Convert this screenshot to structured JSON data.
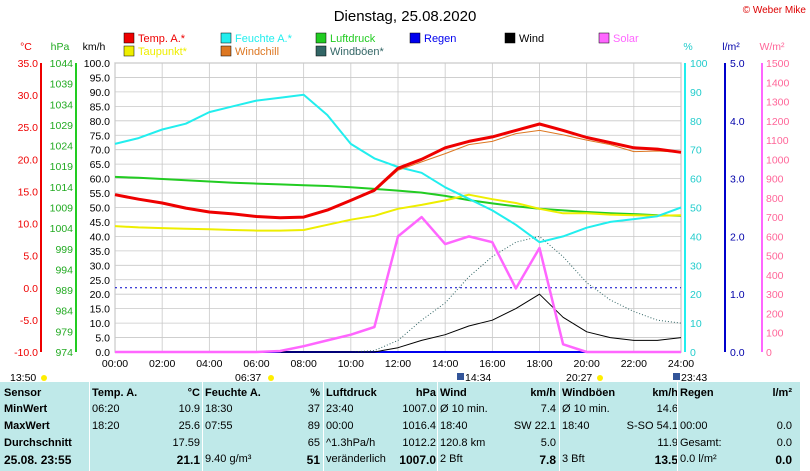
{
  "title": "Dienstag, 25.08.2020",
  "copyright": "© Weber Mike",
  "colors": {
    "temp": "#ee0000",
    "humidity": "#22eeee",
    "pressure": "#22cc22",
    "rain": "#0000ee",
    "wind": "#000000",
    "solar": "#ff66ff",
    "dewpoint": "#eeee00",
    "windchill": "#dd7722",
    "gusts": "#336666",
    "axis_blue": "#0000aa",
    "axis_pink": "#ff6699",
    "panel_bg": "#bfe9e9"
  },
  "legend": [
    {
      "label": "Temp. A.*",
      "color": "#ee0000"
    },
    {
      "label": "Feuchte A.*",
      "color": "#22eeee"
    },
    {
      "label": "Luftdruck",
      "color": "#22cc22"
    },
    {
      "label": "Regen",
      "color": "#0000ee"
    },
    {
      "label": "Wind",
      "color": "#000000"
    },
    {
      "label": "Solar",
      "color": "#ff66ff"
    },
    {
      "label": "Taupunkt*",
      "color": "#eeee00"
    },
    {
      "label": "Windchill",
      "color": "#dd7722"
    },
    {
      "label": "Windböen*",
      "color": "#336666"
    }
  ],
  "axis_units": {
    "temp": "°C",
    "pressure": "hPa",
    "wind": "km/h",
    "humidity": "%",
    "rain": "l/m²",
    "solar": "W/m²"
  },
  "chart_data": {
    "type": "line",
    "title": "Dienstag, 25.08.2020",
    "x_ticks": [
      "00:00",
      "02:00",
      "04:00",
      "06:00",
      "08:00",
      "10:00",
      "12:00",
      "14:00",
      "16:00",
      "18:00",
      "20:00",
      "22:00",
      "24:00"
    ],
    "x_hours": [
      0,
      1,
      2,
      3,
      4,
      5,
      6,
      7,
      8,
      9,
      10,
      11,
      12,
      13,
      14,
      15,
      16,
      17,
      18,
      19,
      20,
      21,
      22,
      23,
      24
    ],
    "axes": {
      "temp_c": {
        "min": -10.0,
        "max": 35.0,
        "ticks": [
          "35.0",
          "30.0",
          "25.0",
          "20.0",
          "15.0",
          "10.0",
          "5.0",
          "0.0",
          "-5.0",
          "-10.0"
        ]
      },
      "pressure_hpa": {
        "min": 974,
        "max": 1044,
        "ticks": [
          "1044",
          "1039",
          "1034",
          "1029",
          "1024",
          "1019",
          "1014",
          "1009",
          "1004",
          "999",
          "994",
          "989",
          "984",
          "979",
          "974"
        ]
      },
      "wind_kmh": {
        "min": 0.0,
        "max": 100.0,
        "ticks": [
          "100.0",
          "95.0",
          "90.0",
          "85.0",
          "80.0",
          "75.0",
          "70.0",
          "65.0",
          "60.0",
          "55.0",
          "50.0",
          "45.0",
          "40.0",
          "35.0",
          "30.0",
          "25.0",
          "20.0",
          "15.0",
          "10.0",
          "5.0",
          "0.0"
        ]
      },
      "humidity_pct": {
        "min": 0,
        "max": 100,
        "ticks": [
          "100",
          "90",
          "80",
          "70",
          "60",
          "50",
          "40",
          "30",
          "20",
          "10",
          "0"
        ]
      },
      "rain_lm2": {
        "min": 0.0,
        "max": 5.0,
        "ticks": [
          "5.0",
          "4.0",
          "3.0",
          "2.0",
          "1.0",
          "0.0"
        ]
      },
      "solar_wm2": {
        "min": 0,
        "max": 1500,
        "ticks": [
          "1500",
          "1400",
          "1300",
          "1200",
          "1100",
          "1000",
          "900",
          "800",
          "700",
          "600",
          "500",
          "400",
          "300",
          "200",
          "100",
          "0"
        ]
      }
    },
    "series": [
      {
        "name": "Temp. A.*",
        "axis": "temp_c",
        "values": [
          14.5,
          13.8,
          13.2,
          12.4,
          11.8,
          11.5,
          11.1,
          10.9,
          11.0,
          12.1,
          13.6,
          15.2,
          18.6,
          20.0,
          21.8,
          22.8,
          23.5,
          24.5,
          25.5,
          24.5,
          23.4,
          22.6,
          21.8,
          21.6,
          21.1
        ]
      },
      {
        "name": "Feuchte A.*",
        "axis": "humidity_pct",
        "values": [
          72,
          74,
          77,
          79,
          83,
          85,
          87,
          88,
          89,
          82,
          72,
          67,
          64,
          62,
          57,
          53,
          49,
          44,
          38,
          40,
          43,
          45,
          46,
          47,
          50
        ]
      },
      {
        "name": "Luftdruck",
        "axis": "pressure_hpa",
        "values": [
          1016.4,
          1016.2,
          1015.9,
          1015.6,
          1015.3,
          1015.0,
          1014.8,
          1014.6,
          1014.4,
          1014.2,
          1013.9,
          1013.5,
          1013.1,
          1012.6,
          1011.8,
          1010.8,
          1010.0,
          1009.3,
          1008.7,
          1008.3,
          1007.9,
          1007.6,
          1007.4,
          1007.1,
          1007.0
        ]
      },
      {
        "name": "Taupunkt*",
        "axis": "temp_c",
        "values": [
          9.6,
          9.4,
          9.3,
          9.2,
          9.1,
          9.0,
          8.9,
          8.9,
          9.0,
          9.8,
          10.6,
          11.2,
          12.3,
          12.9,
          13.6,
          14.5,
          13.8,
          13.2,
          12.3,
          11.6,
          11.6,
          11.4,
          11.3,
          11.2,
          11.3
        ]
      },
      {
        "name": "Windchill",
        "axis": "temp_c",
        "values": [
          14.5,
          13.8,
          13.2,
          12.4,
          11.8,
          11.5,
          11.1,
          10.9,
          11.0,
          12.1,
          13.6,
          15.0,
          18.3,
          19.6,
          20.9,
          22.3,
          22.8,
          24.0,
          24.5,
          23.8,
          23.0,
          22.3,
          21.2,
          21.3,
          21.1
        ]
      },
      {
        "name": "Wind",
        "axis": "wind_kmh",
        "values": [
          0,
          0,
          0,
          0,
          0,
          0,
          0,
          0,
          0,
          0,
          0,
          0,
          1.5,
          4,
          6,
          9,
          11,
          15,
          20,
          12,
          7,
          5,
          4,
          4,
          5
        ]
      },
      {
        "name": "Windböen*",
        "axis": "wind_kmh",
        "values": [
          0,
          0,
          0,
          0,
          0,
          0,
          0,
          0,
          0,
          0,
          0,
          0.5,
          4,
          11,
          17,
          26,
          33,
          38,
          40,
          33,
          24,
          18,
          14,
          11,
          10
        ]
      },
      {
        "name": "Solar",
        "axis": "solar_wm2",
        "values": [
          0,
          0,
          0,
          0,
          0,
          0,
          0,
          5,
          30,
          60,
          90,
          130,
          600,
          700,
          560,
          600,
          570,
          330,
          540,
          40,
          0,
          0,
          0,
          0,
          0
        ]
      },
      {
        "name": "Regen",
        "axis": "rain_lm2",
        "values": [
          0,
          0,
          0,
          0,
          0,
          0,
          0,
          0,
          0,
          0,
          0,
          0,
          0,
          0,
          0,
          0,
          0,
          0,
          0,
          0,
          0,
          0,
          0,
          0,
          0
        ]
      }
    ],
    "annotations": {
      "left_time": "13:50",
      "sunrise": "06:37",
      "mark1": "14:34",
      "sunset": "20:27",
      "mark2": "23:43"
    },
    "grid": true
  },
  "panel": {
    "col1": {
      "header": "Sensor",
      "rows": [
        "MinWert",
        "MaxWert",
        "Durchschnitt"
      ],
      "footer": "25.08. 23:55"
    },
    "col2": {
      "header": "Temp. A.",
      "unit": "°C",
      "rows": [
        [
          "06:20",
          "10.9"
        ],
        [
          "18:20",
          "25.6"
        ],
        [
          "",
          "17.59"
        ]
      ],
      "footer": "21.1"
    },
    "col3": {
      "header": "Feuchte A.",
      "unit": "%",
      "rows": [
        [
          "18:30",
          "37"
        ],
        [
          "07:55",
          "89"
        ],
        [
          "",
          "65"
        ]
      ],
      "footer_l": "9.40 g/m³",
      "footer": "51"
    },
    "col4": {
      "header": "Luftdruck",
      "unit": "hPa",
      "rows": [
        [
          "23:40",
          "1007.0"
        ],
        [
          "00:00",
          "1016.4"
        ],
        [
          "^1.3hPa/h",
          "1012.2"
        ]
      ],
      "footer_l": "veränderlich",
      "footer": "1007.0"
    },
    "col5": {
      "header": "Wind",
      "unit": "km/h",
      "rows": [
        [
          "Ø 10 min.",
          "7.4"
        ],
        [
          "18:40",
          "SW 22.1"
        ],
        [
          "120.8 km",
          "5.0"
        ]
      ],
      "footer_l": "2 Bft",
      "footer": "7.8"
    },
    "col6": {
      "header": "Windböen",
      "unit": "km/h",
      "rows": [
        [
          "Ø 10 min.",
          "14.6"
        ],
        [
          "18:40",
          "S-SO 54.1"
        ],
        [
          "",
          "11.9"
        ]
      ],
      "footer_l": "3 Bft",
      "footer": "13.5"
    },
    "col7": {
      "header": "Regen",
      "unit": "l/m²",
      "rows": [
        [
          "",
          ""
        ],
        [
          "00:00",
          "0.0"
        ],
        [
          "Gesamt:",
          "0.0"
        ]
      ],
      "footer_l": "0.0 l/m²",
      "footer": "0.0"
    }
  }
}
